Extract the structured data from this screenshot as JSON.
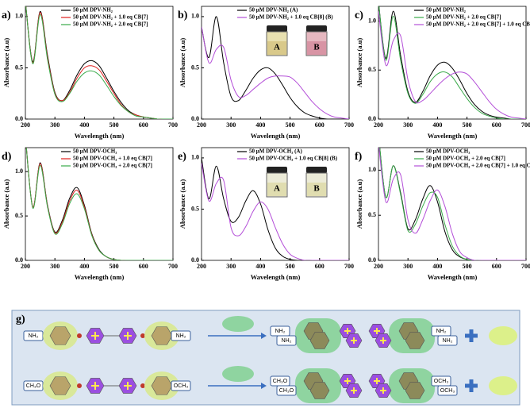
{
  "chart_data": [
    {
      "type": "line",
      "panel_label": "a)",
      "xlabel": "Wavelength (nm)",
      "ylabel": "Absorbance (a.u)",
      "x": [
        200,
        225,
        250,
        275,
        300,
        325,
        350,
        375,
        400,
        425,
        450,
        475,
        500,
        525,
        550,
        575,
        600,
        625,
        650,
        675,
        700
      ],
      "xlim": [
        200,
        700
      ],
      "xticks": [
        200,
        300,
        400,
        500,
        600,
        700
      ],
      "ylim": [
        0,
        1.1
      ],
      "yticks": [
        {
          "value": 0,
          "label": "0.0"
        },
        0.5,
        {
          "value": 1,
          "label": "1.0"
        }
      ],
      "series": [
        {
          "name": "50 μM DPV-NH₂",
          "color": "#000000",
          "values": [
            1.15,
            0.56,
            1.05,
            0.62,
            0.26,
            0.18,
            0.28,
            0.43,
            0.54,
            0.57,
            0.52,
            0.4,
            0.27,
            0.16,
            0.08,
            0.04,
            0.02,
            0.01,
            0,
            0,
            0
          ]
        },
        {
          "name": "50 μM DPV-NH₂ + 1.0 eq CB[7]",
          "color": "#e0201f",
          "values": [
            1.15,
            0.55,
            1.04,
            0.6,
            0.25,
            0.18,
            0.26,
            0.4,
            0.5,
            0.52,
            0.48,
            0.37,
            0.25,
            0.14,
            0.07,
            0.04,
            0.02,
            0.01,
            0,
            0,
            0
          ]
        },
        {
          "name": "50 μM DPV-NH₂ + 2.0 eq CB[7]",
          "color": "#3aaa4a",
          "values": [
            1.15,
            0.54,
            1.02,
            0.58,
            0.24,
            0.17,
            0.25,
            0.37,
            0.45,
            0.47,
            0.43,
            0.33,
            0.22,
            0.13,
            0.07,
            0.03,
            0.02,
            0.01,
            0,
            0,
            0
          ]
        }
      ]
    },
    {
      "type": "line",
      "panel_label": "b)",
      "xlabel": "Wavelength (nm)",
      "ylabel": "Absorbance (a.u)",
      "x": [
        200,
        225,
        250,
        275,
        300,
        325,
        350,
        375,
        400,
        425,
        450,
        475,
        500,
        525,
        550,
        575,
        600,
        625,
        650,
        675,
        700
      ],
      "xlim": [
        200,
        700
      ],
      "xticks": [
        200,
        300,
        400,
        500,
        600,
        700
      ],
      "ylim": [
        0,
        1.1
      ],
      "yticks": [
        {
          "value": 0,
          "label": "0.0"
        },
        0.5,
        {
          "value": 1,
          "label": "1.0"
        }
      ],
      "insets": [
        "A",
        "B"
      ],
      "series": [
        {
          "name": "50 μM DPV-NH₂ (A)",
          "color": "#000000",
          "values": [
            0.9,
            0.6,
            1.0,
            0.55,
            0.22,
            0.18,
            0.28,
            0.4,
            0.48,
            0.5,
            0.44,
            0.33,
            0.21,
            0.12,
            0.06,
            0.03,
            0.01,
            0,
            0,
            0,
            0
          ]
        },
        {
          "name": "50 μM DPV-NH₂ + 1.0 eq CB[8] (B)",
          "color": "#b44fd8",
          "values": [
            0.9,
            0.55,
            0.68,
            0.7,
            0.38,
            0.22,
            0.23,
            0.29,
            0.35,
            0.4,
            0.42,
            0.42,
            0.41,
            0.35,
            0.26,
            0.17,
            0.1,
            0.05,
            0.02,
            0.01,
            0
          ]
        }
      ]
    },
    {
      "type": "line",
      "panel_label": "c)",
      "xlabel": "Wavelength (nm)",
      "ylabel": "Absorbance (a.u)",
      "x": [
        200,
        225,
        250,
        275,
        300,
        325,
        350,
        375,
        400,
        425,
        450,
        475,
        500,
        525,
        550,
        575,
        600,
        625,
        650,
        675,
        700
      ],
      "xlim": [
        200,
        700
      ],
      "xticks": [
        200,
        300,
        400,
        500,
        600,
        700
      ],
      "ylim": [
        0,
        1.15
      ],
      "yticks": [
        {
          "value": 0,
          "label": "0.0"
        },
        0.5,
        {
          "value": 1,
          "label": "1.0"
        }
      ],
      "series": [
        {
          "name": "50 μM DPV-NH₂",
          "color": "#000000",
          "values": [
            1.2,
            0.62,
            1.1,
            0.65,
            0.28,
            0.17,
            0.28,
            0.44,
            0.55,
            0.58,
            0.52,
            0.4,
            0.26,
            0.15,
            0.08,
            0.04,
            0.02,
            0.01,
            0,
            0,
            0
          ]
        },
        {
          "name": "50 μM DPV-NH₂ + 2.0 eq CB[7]",
          "color": "#3aaa4a",
          "values": [
            1.2,
            0.6,
            1.05,
            0.6,
            0.26,
            0.16,
            0.25,
            0.38,
            0.46,
            0.48,
            0.43,
            0.32,
            0.21,
            0.12,
            0.06,
            0.03,
            0.01,
            0,
            0,
            0,
            0
          ]
        },
        {
          "name": "50 μM DPV-NH₂ + 2.0 eq CB[7] + 1.0 eq CB[8]",
          "color": "#b44fd8",
          "values": [
            1.1,
            0.55,
            0.8,
            0.85,
            0.4,
            0.18,
            0.19,
            0.26,
            0.34,
            0.41,
            0.46,
            0.48,
            0.46,
            0.38,
            0.28,
            0.18,
            0.1,
            0.05,
            0.02,
            0.01,
            0
          ]
        }
      ]
    },
    {
      "type": "line",
      "panel_label": "d)",
      "xlabel": "Wavelength (nm)",
      "ylabel": "Absorbance (a.u)",
      "x": [
        200,
        225,
        250,
        275,
        300,
        325,
        350,
        375,
        400,
        425,
        450,
        475,
        500,
        525,
        550,
        575,
        600,
        625,
        650,
        675,
        700
      ],
      "xlim": [
        200,
        700
      ],
      "xticks": [
        200,
        300,
        400,
        500,
        600,
        700
      ],
      "ylim": [
        0,
        1.27
      ],
      "yticks": [
        {
          "value": 0,
          "label": "0.0"
        },
        0.5,
        {
          "value": 1,
          "label": "1.0"
        }
      ],
      "series": [
        {
          "name": "50 μM DPV-OCH₃",
          "color": "#000000",
          "values": [
            1.4,
            0.6,
            1.1,
            0.62,
            0.32,
            0.45,
            0.7,
            0.82,
            0.62,
            0.3,
            0.12,
            0.04,
            0.01,
            0,
            0,
            0,
            0,
            0,
            0,
            0,
            0
          ]
        },
        {
          "name": "50 μM DPV-OCH₃ + 1.0 eq CB[7]",
          "color": "#e0201f",
          "values": [
            1.4,
            0.6,
            1.09,
            0.61,
            0.31,
            0.43,
            0.67,
            0.79,
            0.6,
            0.29,
            0.11,
            0.04,
            0.01,
            0,
            0,
            0,
            0,
            0,
            0,
            0,
            0
          ]
        },
        {
          "name": "50 μM DPV-OCH₃ + 2.0 eq CB[7]",
          "color": "#3aaa4a",
          "values": [
            1.4,
            0.59,
            1.07,
            0.6,
            0.3,
            0.41,
            0.64,
            0.75,
            0.58,
            0.28,
            0.11,
            0.04,
            0.01,
            0,
            0,
            0,
            0,
            0,
            0,
            0,
            0
          ]
        }
      ]
    },
    {
      "type": "line",
      "panel_label": "e)",
      "xlabel": "Wavelength (nm)",
      "ylabel": "Absorbance (a.u)",
      "x": [
        200,
        225,
        250,
        275,
        300,
        325,
        350,
        375,
        400,
        425,
        450,
        475,
        500,
        525,
        550,
        575,
        600,
        625,
        650,
        675,
        700
      ],
      "xlim": [
        200,
        700
      ],
      "xticks": [
        200,
        300,
        400,
        500,
        600,
        700
      ],
      "ylim": [
        0,
        1.1
      ],
      "yticks": [
        {
          "value": 0,
          "label": "0.0"
        },
        0.5,
        {
          "value": 1,
          "label": "1.0"
        }
      ],
      "insets": [
        "A",
        "B"
      ],
      "series": [
        {
          "name": "50 μM DPV-OCH₃ (A)",
          "color": "#000000",
          "values": [
            1.0,
            0.6,
            0.92,
            0.6,
            0.38,
            0.42,
            0.58,
            0.68,
            0.55,
            0.3,
            0.12,
            0.04,
            0.01,
            0,
            0,
            0,
            0,
            0,
            0,
            0,
            0
          ]
        },
        {
          "name": "50 μM DPV-OCH₃ + 1.0 eq CB[8] (B)",
          "color": "#b44fd8",
          "values": [
            0.95,
            0.58,
            0.75,
            0.78,
            0.32,
            0.24,
            0.33,
            0.48,
            0.57,
            0.5,
            0.32,
            0.16,
            0.06,
            0.02,
            0,
            0,
            0,
            0,
            0,
            0,
            0
          ]
        }
      ]
    },
    {
      "type": "line",
      "panel_label": "f)",
      "xlabel": "Wavelength (nm)",
      "ylabel": "Absorbance (a.u)",
      "x": [
        200,
        225,
        250,
        275,
        300,
        325,
        350,
        375,
        400,
        425,
        450,
        475,
        500,
        525,
        550,
        575,
        600,
        625,
        650,
        675,
        700
      ],
      "xlim": [
        200,
        700
      ],
      "xticks": [
        200,
        300,
        400,
        500,
        600,
        700
      ],
      "ylim": [
        0,
        1.25
      ],
      "yticks": [
        {
          "value": 0,
          "label": "0.0"
        },
        0.5,
        {
          "value": 1,
          "label": "1.0"
        }
      ],
      "series": [
        {
          "name": "50 μM DPV-OCH₃",
          "color": "#000000",
          "values": [
            1.4,
            0.7,
            1.05,
            0.75,
            0.35,
            0.45,
            0.68,
            0.83,
            0.65,
            0.32,
            0.12,
            0.04,
            0.01,
            0,
            0,
            0,
            0,
            0,
            0,
            0,
            0
          ]
        },
        {
          "name": "50 μM DPV-OCH₃ + 2.0 eq CB[7]",
          "color": "#3aaa4a",
          "values": [
            1.4,
            0.7,
            1.05,
            0.73,
            0.33,
            0.4,
            0.6,
            0.75,
            0.7,
            0.4,
            0.16,
            0.05,
            0.01,
            0,
            0,
            0,
            0,
            0,
            0,
            0,
            0
          ]
        },
        {
          "name": "50 μM DPV-OCH₃ + 2.0 eq CB[7] + 1.0 eq CB[8]",
          "color": "#b44fd8",
          "values": [
            1.3,
            0.65,
            0.9,
            0.95,
            0.45,
            0.3,
            0.45,
            0.66,
            0.78,
            0.6,
            0.3,
            0.1,
            0.03,
            0,
            0,
            0,
            0,
            0,
            0,
            0,
            0
          ]
        }
      ]
    }
  ],
  "scheme": {
    "label": "g)",
    "rows": [
      {
        "left": "NH₂",
        "right": "NH₂",
        "product_left": [
          "NH₂",
          "NH₂"
        ],
        "product_right": [
          "NH₂",
          "NH₂"
        ]
      },
      {
        "left": "CH₃O",
        "right": "OCH₃",
        "product_left": [
          "CH₃O",
          "CH₃O"
        ],
        "product_right": [
          "OCH₃",
          "OCH₃"
        ]
      }
    ]
  }
}
